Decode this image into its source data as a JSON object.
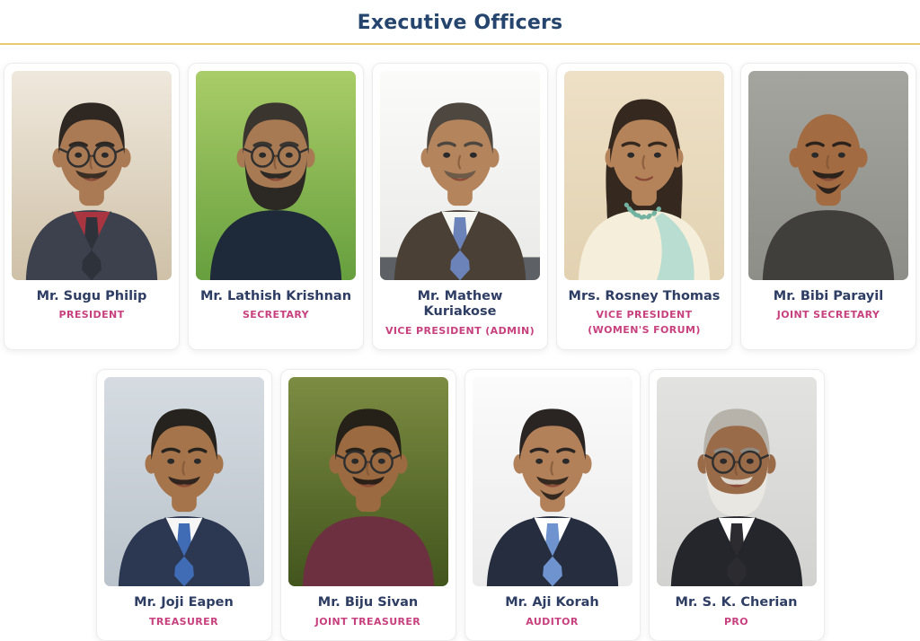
{
  "header": {
    "title": "Executive Officers"
  },
  "theme": {
    "title_color": "#25456e",
    "divider_color": "#eaca74",
    "name_color": "#2e3d63",
    "role_color": "#c8417f",
    "card_background": "#ffffff",
    "page_background": "#ffffff"
  },
  "officers": [
    {
      "name": "Mr. Sugu Philip",
      "role": "PRESIDENT",
      "row": 1,
      "photo": {
        "style": "short",
        "bg": [
          "#efe8dc",
          "#cfc1a8"
        ],
        "skin": "#aa7a55",
        "hair": "#2e2722",
        "glasses": true,
        "mustache": true,
        "mustacheColor": "#3a2d24",
        "shirt": "#3c414d",
        "inner": "#a8353f",
        "tie": "#2e323b"
      }
    },
    {
      "name": "Mr. Lathish Krishnan",
      "role": "SECRETARY",
      "row": 1,
      "photo": {
        "style": "short",
        "bg": [
          "#a9cd68",
          "#679f3e"
        ],
        "skin": "#a87a54",
        "hair": "#3b3530",
        "glasses": true,
        "beard": "full",
        "beardColor": "#2c2823",
        "mustache": true,
        "mustacheColor": "#2c2823",
        "shirt": "#1e2a3a"
      }
    },
    {
      "name": "Mr. Mathew Kuriakose",
      "role": "VICE PRESIDENT (ADMIN)",
      "row": 1,
      "photo": {
        "style": "short",
        "bg": [
          "#fbfbfa",
          "#e9e9e7"
        ],
        "band": "#5d6065",
        "skin": "#b4845d",
        "hair": "#4d473f",
        "mustache": true,
        "mustacheColor": "#6d5a48",
        "shirt": "#4a4036",
        "inner": "#f4f4f1",
        "tie": "#6b83b8"
      }
    },
    {
      "name": "Mrs. Rosney Thomas",
      "role": "VICE PRESIDENT (WOMEN'S FORUM)",
      "row": 1,
      "photo": {
        "style": "female",
        "bg": [
          "#eee0c6",
          "#e2d2b2"
        ],
        "skin": "#b5835a",
        "hair": "#35291f",
        "shirt": "#f4eeda",
        "sash": "#b9ded1",
        "necklace": "#72b2a0"
      }
    },
    {
      "name": "Mr. Bibi Parayil",
      "role": "JOINT SECRETARY",
      "row": 1,
      "photo": {
        "style": "bald",
        "bg": [
          "#a5a59f",
          "#8e8e88"
        ],
        "skin": "#a26b42",
        "hair": "#2b221b",
        "brow": "#2b221b",
        "beard": "goatee",
        "beardColor": "#2b221b",
        "mustache": true,
        "mustacheColor": "#2b221b",
        "shirt": "#413f3c"
      }
    },
    {
      "name": "Mr. Joji Eapen",
      "role": "TREASURER",
      "row": 2,
      "photo": {
        "style": "short",
        "bg": [
          "#d5dbe1",
          "#bac3cb"
        ],
        "skin": "#a5744b",
        "hair": "#26221e",
        "mustache": true,
        "mustacheColor": "#2f251e",
        "shirt": "#2c3752",
        "inner": "#f6f6f6",
        "tie": "#3f6cb4"
      }
    },
    {
      "name": "Mr. Biju Sivan",
      "role": "JOINT TREASURER",
      "row": 2,
      "photo": {
        "style": "short",
        "bg": [
          "#7c8c42",
          "#42551d"
        ],
        "skin": "#9b6a40",
        "hair": "#252018",
        "glasses": true,
        "mustache": true,
        "mustacheColor": "#2a2017",
        "shirt": "#6d3040"
      }
    },
    {
      "name": "Mr. Aji Korah",
      "role": "AUDITOR",
      "row": 2,
      "photo": {
        "style": "short",
        "bg": [
          "#fbfbfb",
          "#ebebeb"
        ],
        "skin": "#b28059",
        "hair": "#2a2522",
        "beard": "goatee",
        "beardColor": "#33291f",
        "mustache": true,
        "mustacheColor": "#33291f",
        "shirt": "#252d3e",
        "inner": "#ffffff",
        "tie": "#6e93cf"
      }
    },
    {
      "name": "Mr. S. K. Cherian",
      "role": "PRO",
      "row": 2,
      "photo": {
        "style": "short",
        "bg": [
          "#e2e2e0",
          "#d2d2d0"
        ],
        "skin": "#9a6b48",
        "hair": "#b7b3ab",
        "brow": "#8f8b83",
        "glasses": true,
        "beard": "full",
        "beardColor": "#e9e7e1",
        "mustache": true,
        "mustacheColor": "#ddd8cf",
        "shirt": "#24262b",
        "inner": "#ffffff",
        "tie": "#2b2b30"
      }
    }
  ]
}
